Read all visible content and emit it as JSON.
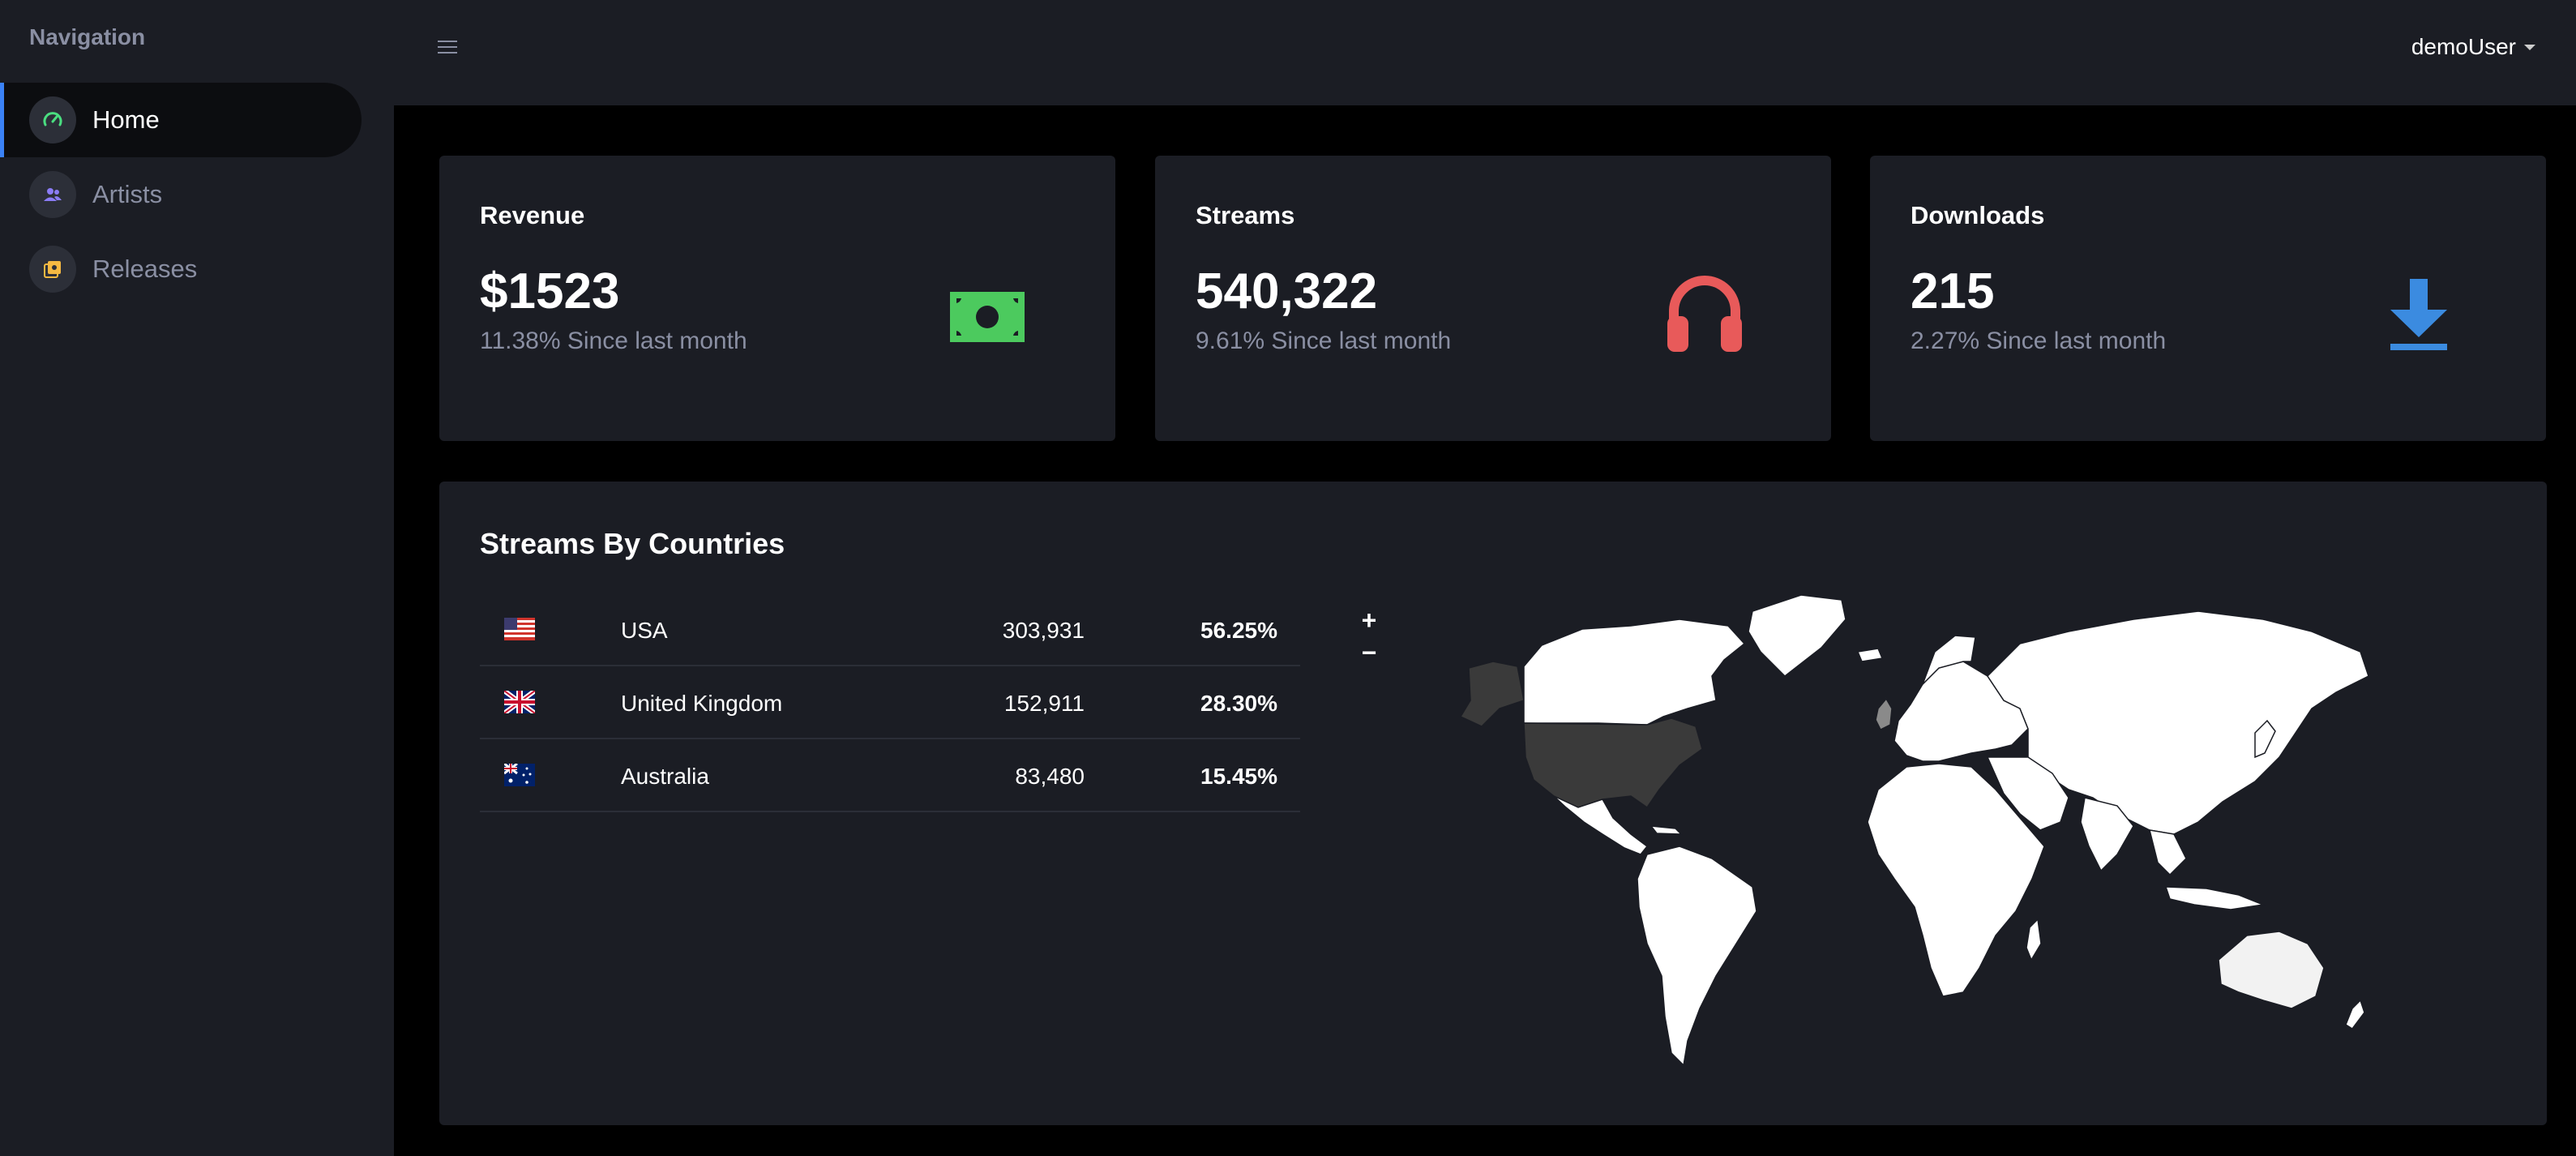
{
  "sidebar": {
    "title": "Navigation",
    "items": [
      {
        "label": "Home",
        "icon": "speedometer-icon",
        "active": true,
        "icon_color": "#4ade80"
      },
      {
        "label": "Artists",
        "icon": "users-icon",
        "active": false,
        "icon_color": "#8b7cf6"
      },
      {
        "label": "Releases",
        "icon": "album-icon",
        "active": false,
        "icon_color": "#f5b942"
      }
    ]
  },
  "topbar": {
    "menu_icon": "hamburger-icon",
    "user": "demoUser"
  },
  "stats": [
    {
      "title": "Revenue",
      "value": "$1523",
      "change": "11.38% Since last month",
      "icon": "cash-icon",
      "icon_color": "#4cca5e"
    },
    {
      "title": "Streams",
      "value": "540,322",
      "change": "9.61% Since last month",
      "icon": "headphones-icon",
      "icon_color": "#e85a5a"
    },
    {
      "title": "Downloads",
      "value": "215",
      "change": "2.27% Since last month",
      "icon": "download-icon",
      "icon_color": "#3b8be0"
    }
  ],
  "countries": {
    "title": "Streams By Countries",
    "rows": [
      {
        "flag": "us-flag-icon",
        "country": "USA",
        "streams": "303,931",
        "percent": "56.25%"
      },
      {
        "flag": "uk-flag-icon",
        "country": "United Kingdom",
        "streams": "152,911",
        "percent": "28.30%"
      },
      {
        "flag": "au-flag-icon",
        "country": "Australia",
        "streams": "83,480",
        "percent": "15.45%"
      }
    ],
    "map": {
      "zoom_in": "+",
      "zoom_out": "−",
      "highlight_color": "#3a3a3a",
      "land_color": "#ffffff"
    }
  }
}
